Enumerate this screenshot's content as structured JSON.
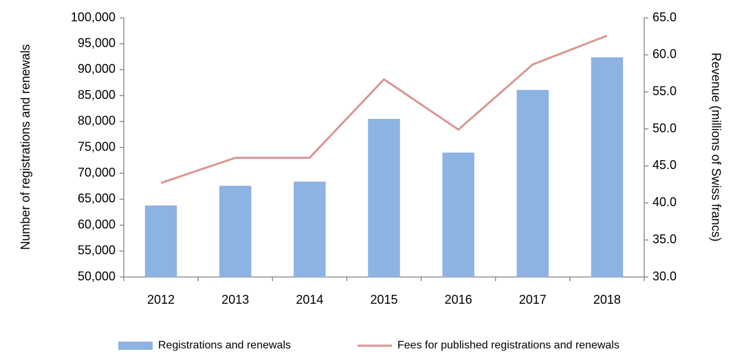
{
  "chart_data": {
    "type": "bar-line",
    "categories": [
      "2012",
      "2013",
      "2014",
      "2015",
      "2016",
      "2017",
      "2018"
    ],
    "series": [
      {
        "name": "Registrations and renewals",
        "type": "bar",
        "color": "#8db3e2",
        "values": [
          63800,
          67600,
          68400,
          80500,
          74000,
          86100,
          92400
        ]
      },
      {
        "name": "Fees for published registrations and renewals",
        "type": "line",
        "axis": "y2",
        "color": "#d99694",
        "values": [
          42.7,
          46.1,
          46.1,
          56.7,
          49.9,
          58.7,
          62.6
        ]
      }
    ],
    "ylabel": "Number of registrations and renewals",
    "y2label": "Revenue (millions of Swiss francs)",
    "ylim": [
      50000,
      100000
    ],
    "yticks": [
      {
        "value": 50000,
        "label": "50,000"
      },
      {
        "value": 55000,
        "label": "55,000"
      },
      {
        "value": 60000,
        "label": "60,000"
      },
      {
        "value": 65000,
        "label": "65,000"
      },
      {
        "value": 70000,
        "label": "70,000"
      },
      {
        "value": 75000,
        "label": "75,000"
      },
      {
        "value": 80000,
        "label": "80,000"
      },
      {
        "value": 85000,
        "label": "85,000"
      },
      {
        "value": 90000,
        "label": "90,000"
      },
      {
        "value": 95000,
        "label": "95,000"
      },
      {
        "value": 100000,
        "label": "100,000"
      }
    ],
    "y2lim": [
      30,
      65
    ],
    "y2ticks": [
      {
        "value": 30,
        "label": "30.0"
      },
      {
        "value": 35,
        "label": "35.0"
      },
      {
        "value": 40,
        "label": "40.0"
      },
      {
        "value": 45,
        "label": "45.0"
      },
      {
        "value": 50,
        "label": "50.0"
      },
      {
        "value": 55,
        "label": "55.0"
      },
      {
        "value": 60,
        "label": "60.0"
      },
      {
        "value": 65,
        "label": "65.0"
      }
    ],
    "grid": false,
    "legend": "bottom"
  }
}
